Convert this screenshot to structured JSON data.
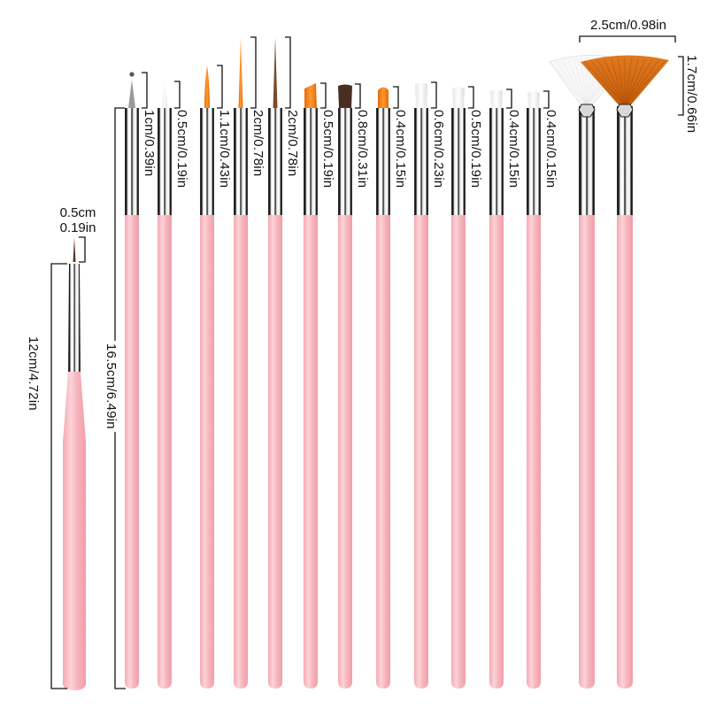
{
  "product": "Nail art brush set",
  "colors": {
    "handle": "#f7b8bf",
    "handle_highlight": "#fcd8dc",
    "ferrule_light": "#f2f2f2",
    "ferrule_dark": "#1a1a1a",
    "bristle_orange": "#f07c12",
    "bristle_brown": "#4a2e22",
    "bristle_white": "#f6f6f6",
    "bristle_silver": "#8a8a8a",
    "bristle_umber": "#7a4a2a",
    "line": "#111111"
  },
  "dimensions": {
    "short_brush_total": "12cm/4.72in",
    "short_brush_tip_cm": "0.5cm",
    "short_brush_tip_in": "0.19in",
    "long_brush_total": "16.5cm/6.49in",
    "fan_width": "2.5cm/0.98in",
    "fan_height": "1.7cm/0.66in"
  },
  "brushes": [
    {
      "type": "dotting",
      "bristle": "silver",
      "label": "1cm/0.39in"
    },
    {
      "type": "liner",
      "bristle": "white",
      "label": "0.5cm/0.19in"
    },
    {
      "type": "liner",
      "bristle": "orange",
      "label": "1.1cm/0.43in"
    },
    {
      "type": "striper",
      "bristle": "orange",
      "label": "2cm/0.78in"
    },
    {
      "type": "striper",
      "bristle": "umber",
      "label": "2cm/0.78in"
    },
    {
      "type": "angled",
      "bristle": "orange",
      "label": "0.5cm/0.19in"
    },
    {
      "type": "flat",
      "bristle": "brown",
      "label": "0.8cm/0.31in"
    },
    {
      "type": "round-flat",
      "bristle": "orange",
      "label": "0.4cm/0.15in"
    },
    {
      "type": "flat",
      "bristle": "white",
      "label": "0.6cm/0.23in"
    },
    {
      "type": "flat",
      "bristle": "white",
      "label": "0.5cm/0.19in"
    },
    {
      "type": "flat",
      "bristle": "white",
      "label": "0.4cm/0.15in"
    },
    {
      "type": "flat",
      "bristle": "white",
      "label": "0.4cm/0.15in"
    },
    {
      "type": "fan",
      "bristle": "white",
      "label": ""
    },
    {
      "type": "fan",
      "bristle": "orange",
      "label": ""
    }
  ]
}
